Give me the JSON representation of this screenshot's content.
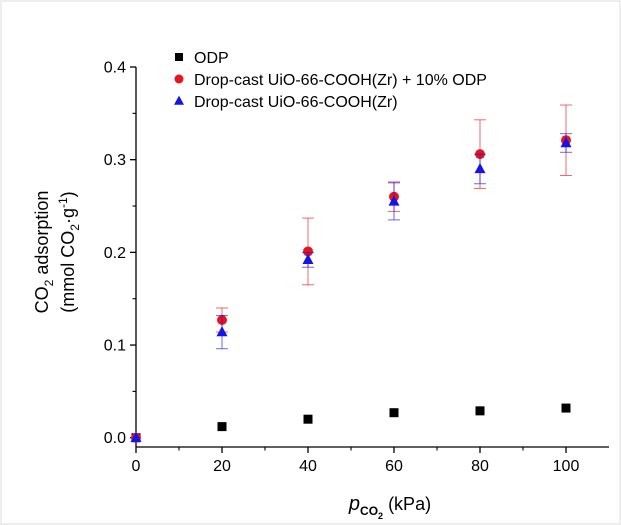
{
  "chart_data": {
    "type": "scatter",
    "xlabel": {
      "main": "p",
      "sub": "CO",
      "subsub": "2",
      "unit": " (kPa)"
    },
    "ylabel": {
      "line1_a": "CO",
      "line1_sub": "2",
      "line1_b": " adsorption",
      "line2_a": "(mmol CO",
      "line2_sub": "2",
      "line2_b": "·g",
      "line2_sup": "-1",
      "line2_c": ")"
    },
    "xlim": [
      0,
      110
    ],
    "ylim": [
      -0.01,
      0.4
    ],
    "xticks": [
      0,
      20,
      40,
      60,
      80,
      100
    ],
    "xtick_labels": [
      "0",
      "20",
      "40",
      "60",
      "80",
      "100"
    ],
    "yticks": [
      0.0,
      0.1,
      0.2,
      0.3,
      0.4
    ],
    "ytick_labels": [
      "0.0",
      "0.1",
      "0.2",
      "0.3",
      "0.4"
    ],
    "legend_position": "top-left",
    "grid": false,
    "series": [
      {
        "name": "ODP",
        "marker": "square",
        "color": "#000000",
        "x": [
          0,
          20,
          40,
          60,
          80,
          100
        ],
        "y": [
          0.0,
          0.012,
          0.02,
          0.027,
          0.029,
          0.032
        ],
        "err": [
          0,
          0,
          0,
          0,
          0,
          0
        ]
      },
      {
        "name": "Drop-cast UiO-66-COOH(Zr) + 10% ODP",
        "marker": "circle",
        "color": "#e8141c",
        "x": [
          0,
          20,
          40,
          60,
          80,
          100
        ],
        "y": [
          0.0,
          0.127,
          0.201,
          0.26,
          0.306,
          0.321
        ],
        "err": [
          0,
          0.013,
          0.036,
          0.016,
          0.037,
          0.038
        ]
      },
      {
        "name": "Drop-cast UiO-66-COOH(Zr)",
        "marker": "triangle",
        "color": "#1414e8",
        "x": [
          0,
          20,
          40,
          60,
          80,
          100
        ],
        "y": [
          0.0,
          0.114,
          0.192,
          0.255,
          0.29,
          0.318
        ],
        "err": [
          0,
          0.018,
          0.008,
          0.02,
          0.016,
          0.01
        ]
      }
    ]
  }
}
